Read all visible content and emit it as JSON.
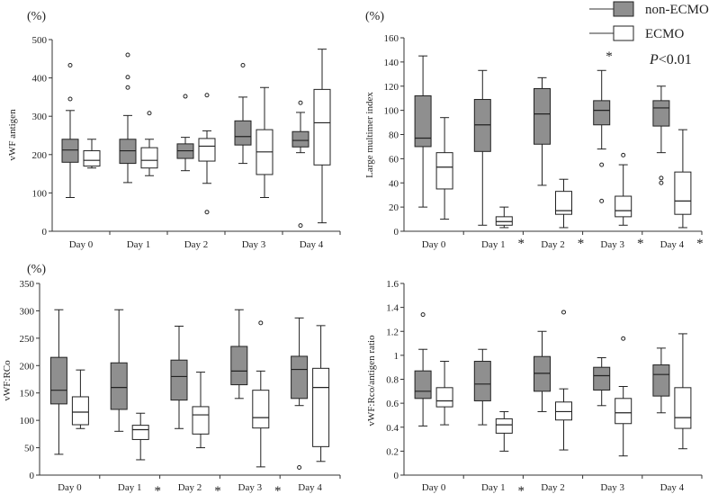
{
  "colors": {
    "non_ecmo": "#8f8f8f",
    "ecmo": "#ffffff",
    "stroke": "#222222"
  },
  "legend": {
    "non_ecmo": "non-ECMO",
    "ecmo": "ECMO"
  },
  "pvalue": {
    "prefix": "P",
    "rest": "<0.01"
  },
  "chart_data": [
    {
      "type": "box",
      "unit_label": "(%)",
      "ylabel": "vWF antigen",
      "ylim": [
        0,
        500
      ],
      "yticks": [
        0,
        100,
        200,
        300,
        400,
        500
      ],
      "categories": [
        "Day 0",
        "Day 1",
        "Day 2",
        "Day 3",
        "Day 4"
      ],
      "series": [
        {
          "name": "non-ECMO",
          "boxes": [
            {
              "min": 88,
              "q1": 180,
              "median": 212,
              "q3": 240,
              "max": 315,
              "outliers": [
                345,
                433
              ]
            },
            {
              "min": 127,
              "q1": 177,
              "median": 210,
              "q3": 240,
              "max": 302,
              "outliers": [
                375,
                402,
                460
              ]
            },
            {
              "min": 158,
              "q1": 190,
              "median": 210,
              "q3": 228,
              "max": 245,
              "outliers": [
                352
              ]
            },
            {
              "min": 177,
              "q1": 225,
              "median": 247,
              "q3": 288,
              "max": 350,
              "outliers": [
                433
              ]
            },
            {
              "min": 205,
              "q1": 220,
              "median": 237,
              "q3": 260,
              "max": 310,
              "outliers": [
                15,
                335
              ]
            }
          ]
        },
        {
          "name": "ECMO",
          "boxes": [
            {
              "min": 165,
              "q1": 170,
              "median": 185,
              "q3": 210,
              "max": 240,
              "outliers": []
            },
            {
              "min": 145,
              "q1": 165,
              "median": 185,
              "q3": 218,
              "max": 240,
              "outliers": [
                308
              ]
            },
            {
              "min": 125,
              "q1": 183,
              "median": 222,
              "q3": 242,
              "max": 262,
              "outliers": [
                50,
                355
              ]
            },
            {
              "min": 88,
              "q1": 148,
              "median": 207,
              "q3": 265,
              "max": 375,
              "outliers": []
            },
            {
              "min": 22,
              "q1": 173,
              "median": 283,
              "q3": 370,
              "max": 475,
              "outliers": []
            }
          ]
        }
      ],
      "significant": [
        false,
        false,
        false,
        false,
        false
      ]
    },
    {
      "type": "box",
      "unit_label": "(%)",
      "ylabel": "Large multimer index",
      "ylim": [
        0,
        160
      ],
      "yticks": [
        0,
        20,
        40,
        60,
        80,
        100,
        120,
        140,
        160
      ],
      "categories": [
        "Day 0",
        "Day 1",
        "Day 2",
        "Day 3",
        "Day 4"
      ],
      "series": [
        {
          "name": "non-ECMO",
          "boxes": [
            {
              "min": 20,
              "q1": 70,
              "median": 77,
              "q3": 112,
              "max": 145,
              "outliers": []
            },
            {
              "min": 5,
              "q1": 66,
              "median": 88,
              "q3": 109,
              "max": 133,
              "outliers": []
            },
            {
              "min": 38,
              "q1": 72,
              "median": 97,
              "q3": 118,
              "max": 127,
              "outliers": []
            },
            {
              "min": 68,
              "q1": 88,
              "median": 100,
              "q3": 108,
              "max": 133,
              "outliers": [
                25,
                55
              ]
            },
            {
              "min": 65,
              "q1": 87,
              "median": 102,
              "q3": 108,
              "max": 120,
              "outliers": [
                40,
                44
              ]
            }
          ]
        },
        {
          "name": "ECMO",
          "boxes": [
            {
              "min": 10,
              "q1": 35,
              "median": 53,
              "q3": 65,
              "max": 94,
              "outliers": []
            },
            {
              "min": 3,
              "q1": 5,
              "median": 8,
              "q3": 12,
              "max": 20,
              "outliers": []
            },
            {
              "min": 3,
              "q1": 14,
              "median": 17,
              "q3": 33,
              "max": 43,
              "outliers": []
            },
            {
              "min": 5,
              "q1": 12,
              "median": 17,
              "q3": 29,
              "max": 55,
              "outliers": [
                63
              ]
            },
            {
              "min": 3,
              "q1": 14,
              "median": 25,
              "q3": 49,
              "max": 84,
              "outliers": []
            }
          ]
        }
      ],
      "significant": [
        false,
        true,
        true,
        true,
        true
      ],
      "marker_note": "*"
    },
    {
      "type": "box",
      "unit_label": "(%)",
      "ylabel": "vWF:RCo",
      "ylim": [
        0,
        350
      ],
      "yticks": [
        0,
        50,
        100,
        150,
        200,
        250,
        300,
        350
      ],
      "categories": [
        "Day 0",
        "Day 1",
        "Day 2",
        "Day 3",
        "Day 4"
      ],
      "series": [
        {
          "name": "non-ECMO",
          "boxes": [
            {
              "min": 38,
              "q1": 130,
              "median": 155,
              "q3": 215,
              "max": 302,
              "outliers": []
            },
            {
              "min": 80,
              "q1": 120,
              "median": 160,
              "q3": 205,
              "max": 302,
              "outliers": []
            },
            {
              "min": 85,
              "q1": 137,
              "median": 180,
              "q3": 210,
              "max": 272,
              "outliers": []
            },
            {
              "min": 140,
              "q1": 165,
              "median": 190,
              "q3": 235,
              "max": 302,
              "outliers": []
            },
            {
              "min": 127,
              "q1": 140,
              "median": 193,
              "q3": 217,
              "max": 287,
              "outliers": [
                14
              ]
            }
          ]
        },
        {
          "name": "ECMO",
          "boxes": [
            {
              "min": 85,
              "q1": 92,
              "median": 115,
              "q3": 143,
              "max": 192,
              "outliers": []
            },
            {
              "min": 28,
              "q1": 65,
              "median": 83,
              "q3": 91,
              "max": 113,
              "outliers": []
            },
            {
              "min": 50,
              "q1": 75,
              "median": 110,
              "q3": 125,
              "max": 188,
              "outliers": []
            },
            {
              "min": 15,
              "q1": 86,
              "median": 105,
              "q3": 155,
              "max": 190,
              "outliers": [
                278
              ]
            },
            {
              "min": 25,
              "q1": 52,
              "median": 160,
              "q3": 195,
              "max": 273,
              "outliers": []
            }
          ]
        }
      ],
      "significant": [
        false,
        true,
        true,
        true,
        false
      ]
    },
    {
      "type": "box",
      "unit_label": "",
      "ylabel": "vWF:Rco/antigen ratio",
      "ylim": [
        0,
        1.6
      ],
      "yticks": [
        "0",
        "0.2",
        "0.4",
        "0.6",
        "0.8",
        "1",
        "1.2",
        "1.4",
        "1.6"
      ],
      "categories": [
        "Day 0",
        "Day 1",
        "Day 2",
        "Day 3",
        "Day 4"
      ],
      "series": [
        {
          "name": "non-ECMO",
          "boxes": [
            {
              "min": 0.41,
              "q1": 0.64,
              "median": 0.7,
              "q3": 0.87,
              "max": 1.05,
              "outliers": [
                1.34
              ]
            },
            {
              "min": 0.42,
              "q1": 0.62,
              "median": 0.76,
              "q3": 0.95,
              "max": 1.05,
              "outliers": []
            },
            {
              "min": 0.53,
              "q1": 0.7,
              "median": 0.85,
              "q3": 0.99,
              "max": 1.2,
              "outliers": []
            },
            {
              "min": 0.58,
              "q1": 0.71,
              "median": 0.83,
              "q3": 0.9,
              "max": 0.98,
              "outliers": []
            },
            {
              "min": 0.52,
              "q1": 0.66,
              "median": 0.84,
              "q3": 0.92,
              "max": 1.06,
              "outliers": []
            }
          ]
        },
        {
          "name": "ECMO",
          "boxes": [
            {
              "min": 0.42,
              "q1": 0.57,
              "median": 0.62,
              "q3": 0.73,
              "max": 0.95,
              "outliers": []
            },
            {
              "min": 0.2,
              "q1": 0.35,
              "median": 0.42,
              "q3": 0.47,
              "max": 0.53,
              "outliers": []
            },
            {
              "min": 0.21,
              "q1": 0.46,
              "median": 0.53,
              "q3": 0.61,
              "max": 0.72,
              "outliers": [
                1.36
              ]
            },
            {
              "min": 0.16,
              "q1": 0.43,
              "median": 0.52,
              "q3": 0.64,
              "max": 0.74,
              "outliers": [
                1.14
              ]
            },
            {
              "min": 0.22,
              "q1": 0.39,
              "median": 0.48,
              "q3": 0.73,
              "max": 1.18,
              "outliers": []
            }
          ]
        }
      ],
      "significant": [
        false,
        true,
        false,
        false,
        false
      ]
    }
  ]
}
